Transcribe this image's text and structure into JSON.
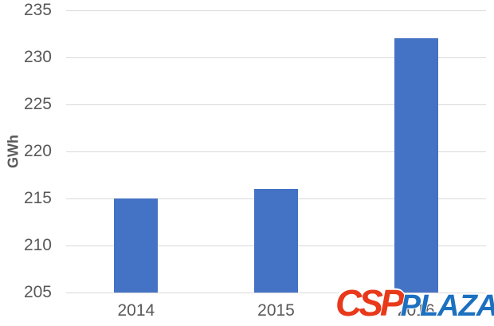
{
  "chart_data": {
    "type": "bar",
    "title": "",
    "xlabel": "",
    "ylabel": "GWh",
    "categories": [
      "2014",
      "2015",
      "2016"
    ],
    "values": [
      215,
      216,
      232
    ],
    "ylim": [
      205,
      235
    ],
    "yticks": [
      205,
      210,
      215,
      220,
      225,
      230,
      235
    ],
    "grid": "horizontal",
    "legend": "none",
    "bar_color": "#4472C4",
    "gridline_color": "#D9D9D9",
    "axis_text_color": "#595959",
    "background_color": "#FFFFFF"
  },
  "watermark": {
    "csp": "CSP",
    "plaza": "PLAZA",
    "csp_color": "#E8391B",
    "plaza_color": "#1C70C0"
  }
}
